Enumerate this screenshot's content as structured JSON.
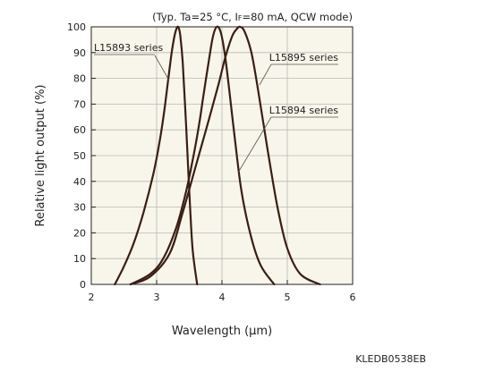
{
  "chart_data": {
    "type": "line",
    "conditions": "(Typ. Ta=25 °C, I",
    "conditions_sub": "F",
    "conditions_tail": "=80 mA, QCW mode)",
    "xlabel": "Wavelength (μm)",
    "ylabel": "Relative light output (%)",
    "xlim": [
      2,
      6
    ],
    "ylim": [
      0,
      100
    ],
    "x_ticks": [
      "2",
      "3",
      "4",
      "5",
      "6"
    ],
    "y_ticks": [
      "0",
      "10",
      "20",
      "30",
      "40",
      "50",
      "60",
      "70",
      "80",
      "90",
      "100"
    ],
    "grid": true,
    "series": [
      {
        "name": "L15893 series",
        "x": [
          2.36,
          2.5,
          2.65,
          2.8,
          2.95,
          3.05,
          3.12,
          3.18,
          3.23,
          3.27,
          3.3,
          3.33,
          3.36,
          3.4,
          3.45,
          3.5,
          3.55,
          3.62
        ],
        "y": [
          0,
          7,
          16,
          28,
          43,
          56,
          68,
          80,
          90,
          96,
          99,
          100,
          97,
          86,
          62,
          36,
          14,
          0
        ]
      },
      {
        "name": "L15894 series",
        "x": [
          2.6,
          2.9,
          3.1,
          3.3,
          3.45,
          3.55,
          3.65,
          3.72,
          3.8,
          3.86,
          3.92,
          3.98,
          4.04,
          4.1,
          4.2,
          4.3,
          4.45,
          4.6,
          4.8
        ],
        "y": [
          0,
          4,
          10,
          22,
          36,
          48,
          62,
          74,
          87,
          96,
          100,
          98,
          90,
          78,
          56,
          36,
          18,
          7,
          0
        ]
      },
      {
        "name": "L15895 series",
        "x": [
          2.6,
          2.9,
          3.2,
          3.4,
          3.6,
          3.8,
          3.95,
          4.05,
          4.15,
          4.22,
          4.28,
          4.35,
          4.45,
          4.55,
          4.7,
          4.85,
          5.0,
          5.2,
          5.5
        ],
        "y": [
          0,
          3,
          12,
          28,
          46,
          64,
          78,
          88,
          96,
          99,
          100,
          98,
          90,
          76,
          52,
          30,
          14,
          4,
          0
        ]
      }
    ],
    "figure_code": "KLEDB0538EB"
  }
}
